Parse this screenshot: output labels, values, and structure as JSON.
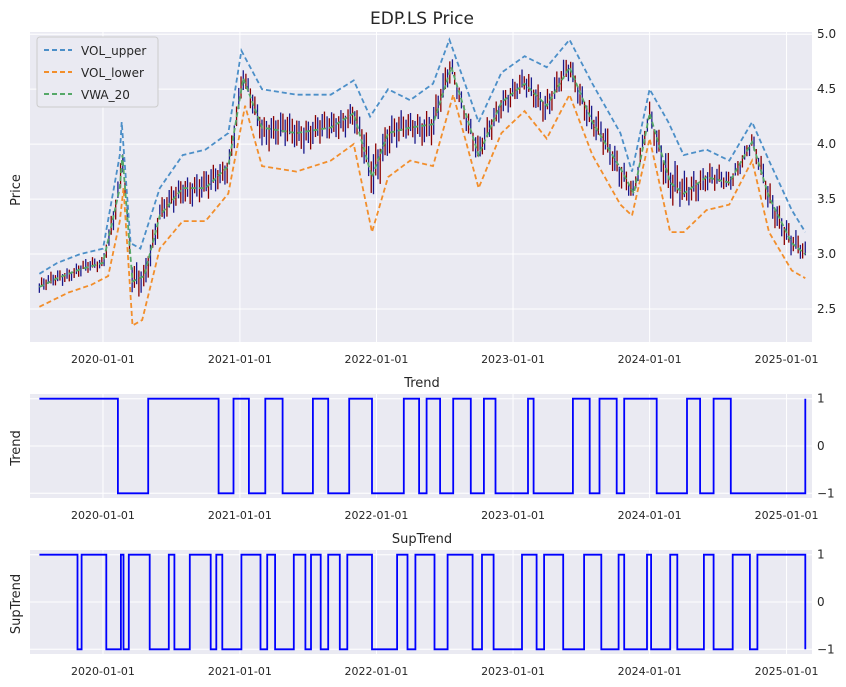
{
  "colors": {
    "panel_bg": "#eaeaf2",
    "grid": "#ffffff",
    "vol_upper": "#4c8fc8",
    "vol_lower": "#f28e2b",
    "vwa_20": "#55a868",
    "candle_up": "#8b0000",
    "candle_down": "#1a1a8c",
    "trend_line": "#0000ff"
  },
  "chart_data": [
    {
      "type": "line",
      "title": "EDP.LS Price",
      "xlabel": "",
      "ylabel": "Price",
      "x_ticks": [
        "2020-01-01",
        "2021-01-01",
        "2022-01-01",
        "2023-01-01",
        "2024-01-01",
        "2025-01-01"
      ],
      "y_ticks": [
        "2.5",
        "3.0",
        "3.5",
        "4.0",
        "4.5",
        "5.0"
      ],
      "ylim": [
        2.2,
        5.02
      ],
      "xlim": [
        "2019-06-20",
        "2025-03-10"
      ],
      "legend": {
        "position": "top-left",
        "entries": [
          "VOL_upper",
          "VOL_lower",
          "VWA_20"
        ]
      },
      "grid": true,
      "series": [
        {
          "name": "VOL_upper",
          "style": "dashed",
          "x": [
            "2019-07-15",
            "2019-09-01",
            "2019-11-01",
            "2020-01-01",
            "2020-02-15",
            "2020-02-20",
            "2020-03-15",
            "2020-04-10",
            "2020-06-01",
            "2020-08-01",
            "2020-10-01",
            "2020-12-01",
            "2021-01-05",
            "2021-03-01",
            "2021-06-01",
            "2021-09-01",
            "2021-11-01",
            "2021-12-15",
            "2022-02-01",
            "2022-04-01",
            "2022-06-01",
            "2022-07-15",
            "2022-10-01",
            "2022-12-01",
            "2023-02-01",
            "2023-04-01",
            "2023-06-01",
            "2023-08-01",
            "2023-10-15",
            "2023-11-15",
            "2024-01-01",
            "2024-02-20",
            "2024-04-01",
            "2024-06-01",
            "2024-08-01",
            "2024-10-01",
            "2024-11-15",
            "2025-01-15",
            "2025-02-20"
          ],
          "values": [
            2.82,
            2.92,
            3.0,
            3.05,
            3.9,
            4.2,
            3.1,
            3.05,
            3.6,
            3.9,
            3.95,
            4.1,
            4.85,
            4.5,
            4.45,
            4.45,
            4.58,
            4.25,
            4.5,
            4.4,
            4.55,
            4.95,
            4.2,
            4.65,
            4.8,
            4.7,
            4.95,
            4.55,
            4.1,
            3.75,
            4.5,
            4.2,
            3.9,
            3.95,
            3.85,
            4.2,
            3.85,
            3.4,
            3.2
          ]
        },
        {
          "name": "VOL_lower",
          "style": "dashed",
          "x": [
            "2019-07-15",
            "2019-10-01",
            "2019-12-01",
            "2020-01-15",
            "2020-02-15",
            "2020-02-25",
            "2020-03-20",
            "2020-04-15",
            "2020-06-01",
            "2020-08-01",
            "2020-10-01",
            "2020-12-01",
            "2021-01-15",
            "2021-03-01",
            "2021-06-01",
            "2021-09-01",
            "2021-11-01",
            "2021-12-20",
            "2022-02-01",
            "2022-04-01",
            "2022-06-01",
            "2022-07-25",
            "2022-10-01",
            "2022-12-01",
            "2023-02-01",
            "2023-04-01",
            "2023-06-01",
            "2023-08-01",
            "2023-10-15",
            "2023-11-15",
            "2024-01-01",
            "2024-02-25",
            "2024-04-01",
            "2024-06-01",
            "2024-08-01",
            "2024-10-01",
            "2024-11-15",
            "2025-01-15",
            "2025-02-20"
          ],
          "values": [
            2.52,
            2.65,
            2.72,
            2.8,
            3.3,
            3.6,
            2.35,
            2.4,
            3.05,
            3.3,
            3.3,
            3.55,
            4.35,
            3.8,
            3.75,
            3.85,
            4.0,
            3.2,
            3.7,
            3.85,
            3.8,
            4.45,
            3.6,
            4.1,
            4.3,
            4.05,
            4.45,
            3.9,
            3.45,
            3.35,
            4.05,
            3.2,
            3.2,
            3.4,
            3.45,
            3.85,
            3.2,
            2.85,
            2.78
          ]
        },
        {
          "name": "VWA_20",
          "style": "dashed",
          "x": [
            "2019-07-15",
            "2019-09-01",
            "2019-11-01",
            "2020-01-01",
            "2020-02-15",
            "2020-02-22",
            "2020-03-20",
            "2020-04-20",
            "2020-06-01",
            "2020-08-01",
            "2020-10-01",
            "2020-12-01",
            "2021-01-10",
            "2021-03-01",
            "2021-06-01",
            "2021-09-01",
            "2021-11-01",
            "2021-12-20",
            "2022-02-01",
            "2022-04-01",
            "2022-06-01",
            "2022-07-20",
            "2022-10-01",
            "2022-12-01",
            "2023-02-01",
            "2023-04-01",
            "2023-06-01",
            "2023-08-01",
            "2023-10-15",
            "2023-11-20",
            "2024-01-01",
            "2024-02-25",
            "2024-04-01",
            "2024-06-01",
            "2024-08-01",
            "2024-10-01",
            "2024-11-15",
            "2025-01-15",
            "2025-02-20"
          ],
          "values": [
            2.7,
            2.78,
            2.86,
            2.92,
            3.6,
            3.9,
            2.75,
            2.8,
            3.35,
            3.6,
            3.6,
            3.8,
            4.6,
            4.15,
            4.1,
            4.15,
            4.28,
            3.7,
            4.1,
            4.15,
            4.18,
            4.7,
            3.9,
            4.38,
            4.55,
            4.35,
            4.7,
            4.2,
            3.78,
            3.55,
            4.28,
            3.65,
            3.55,
            3.7,
            3.65,
            4.02,
            3.52,
            3.1,
            3.0
          ]
        }
      ]
    },
    {
      "type": "line",
      "title": "Trend",
      "xlabel": "",
      "ylabel": "Trend",
      "x_ticks": [
        "2020-01-01",
        "2021-01-01",
        "2022-01-01",
        "2023-01-01",
        "2024-01-01",
        "2025-01-01"
      ],
      "y_ticks": [
        "−1",
        "0",
        "1"
      ],
      "ylim": [
        -1.1,
        1.1
      ],
      "grid": true,
      "series": [
        {
          "x": [
            "2019-07-15",
            "2020-02-10",
            "2020-05-01",
            "2020-11-05",
            "2020-12-15",
            "2021-01-25",
            "2021-03-10",
            "2021-04-25",
            "2021-07-15",
            "2021-08-25",
            "2021-10-20",
            "2021-12-20",
            "2022-03-15",
            "2022-04-25",
            "2022-05-15",
            "2022-06-20",
            "2022-07-25",
            "2022-09-10",
            "2022-10-15",
            "2022-11-15",
            "2023-02-10",
            "2023-02-25",
            "2023-06-10",
            "2023-07-25",
            "2023-08-20",
            "2023-10-05",
            "2023-10-25",
            "2024-01-20",
            "2024-04-10",
            "2024-05-15",
            "2024-06-20",
            "2024-08-05",
            "2025-02-20"
          ],
          "values": [
            1,
            -1,
            1,
            -1,
            1,
            -1,
            1,
            -1,
            1,
            -1,
            1,
            -1,
            1,
            -1,
            1,
            -1,
            1,
            -1,
            1,
            -1,
            1,
            -1,
            1,
            -1,
            1,
            -1,
            1,
            -1,
            1,
            -1,
            1,
            -1,
            1
          ]
        }
      ]
    },
    {
      "type": "line",
      "title": "SupTrend",
      "xlabel": "",
      "ylabel": "SupTrend",
      "x_ticks": [
        "2020-01-01",
        "2021-01-01",
        "2022-01-01",
        "2023-01-01",
        "2024-01-01",
        "2025-01-01"
      ],
      "y_ticks": [
        "−1",
        "0",
        "1"
      ],
      "ylim": [
        -1.1,
        1.1
      ],
      "grid": true,
      "series": [
        {
          "x": [
            "2019-07-15",
            "2019-10-25",
            "2019-11-05",
            "2020-01-10",
            "2020-02-18",
            "2020-02-25",
            "2020-03-10",
            "2020-05-05",
            "2020-06-25",
            "2020-07-10",
            "2020-08-20",
            "2020-10-15",
            "2020-10-30",
            "2020-11-15",
            "2021-01-05",
            "2021-02-25",
            "2021-03-15",
            "2021-04-05",
            "2021-05-25",
            "2021-06-25",
            "2021-07-10",
            "2021-08-05",
            "2021-08-25",
            "2021-09-25",
            "2021-10-15",
            "2021-12-20",
            "2022-02-25",
            "2022-03-25",
            "2022-04-15",
            "2022-06-05",
            "2022-07-10",
            "2022-09-15",
            "2022-10-10",
            "2022-11-10",
            "2023-01-25",
            "2023-03-05",
            "2023-03-25",
            "2023-05-15",
            "2023-07-10",
            "2023-08-25",
            "2023-10-10",
            "2023-10-25",
            "2023-12-25",
            "2024-01-05",
            "2024-02-25",
            "2024-03-15",
            "2024-05-25",
            "2024-06-20",
            "2024-08-10",
            "2024-09-25",
            "2024-10-15",
            "2025-02-20"
          ],
          "values": [
            1,
            -1,
            1,
            -1,
            1,
            -1,
            1,
            -1,
            1,
            -1,
            1,
            -1,
            1,
            -1,
            1,
            -1,
            1,
            -1,
            1,
            -1,
            1,
            -1,
            1,
            -1,
            1,
            -1,
            1,
            -1,
            1,
            -1,
            1,
            -1,
            1,
            -1,
            1,
            -1,
            1,
            -1,
            1,
            -1,
            1,
            -1,
            1,
            -1,
            1,
            -1,
            1,
            -1,
            1,
            -1,
            1,
            -1
          ]
        }
      ]
    }
  ]
}
